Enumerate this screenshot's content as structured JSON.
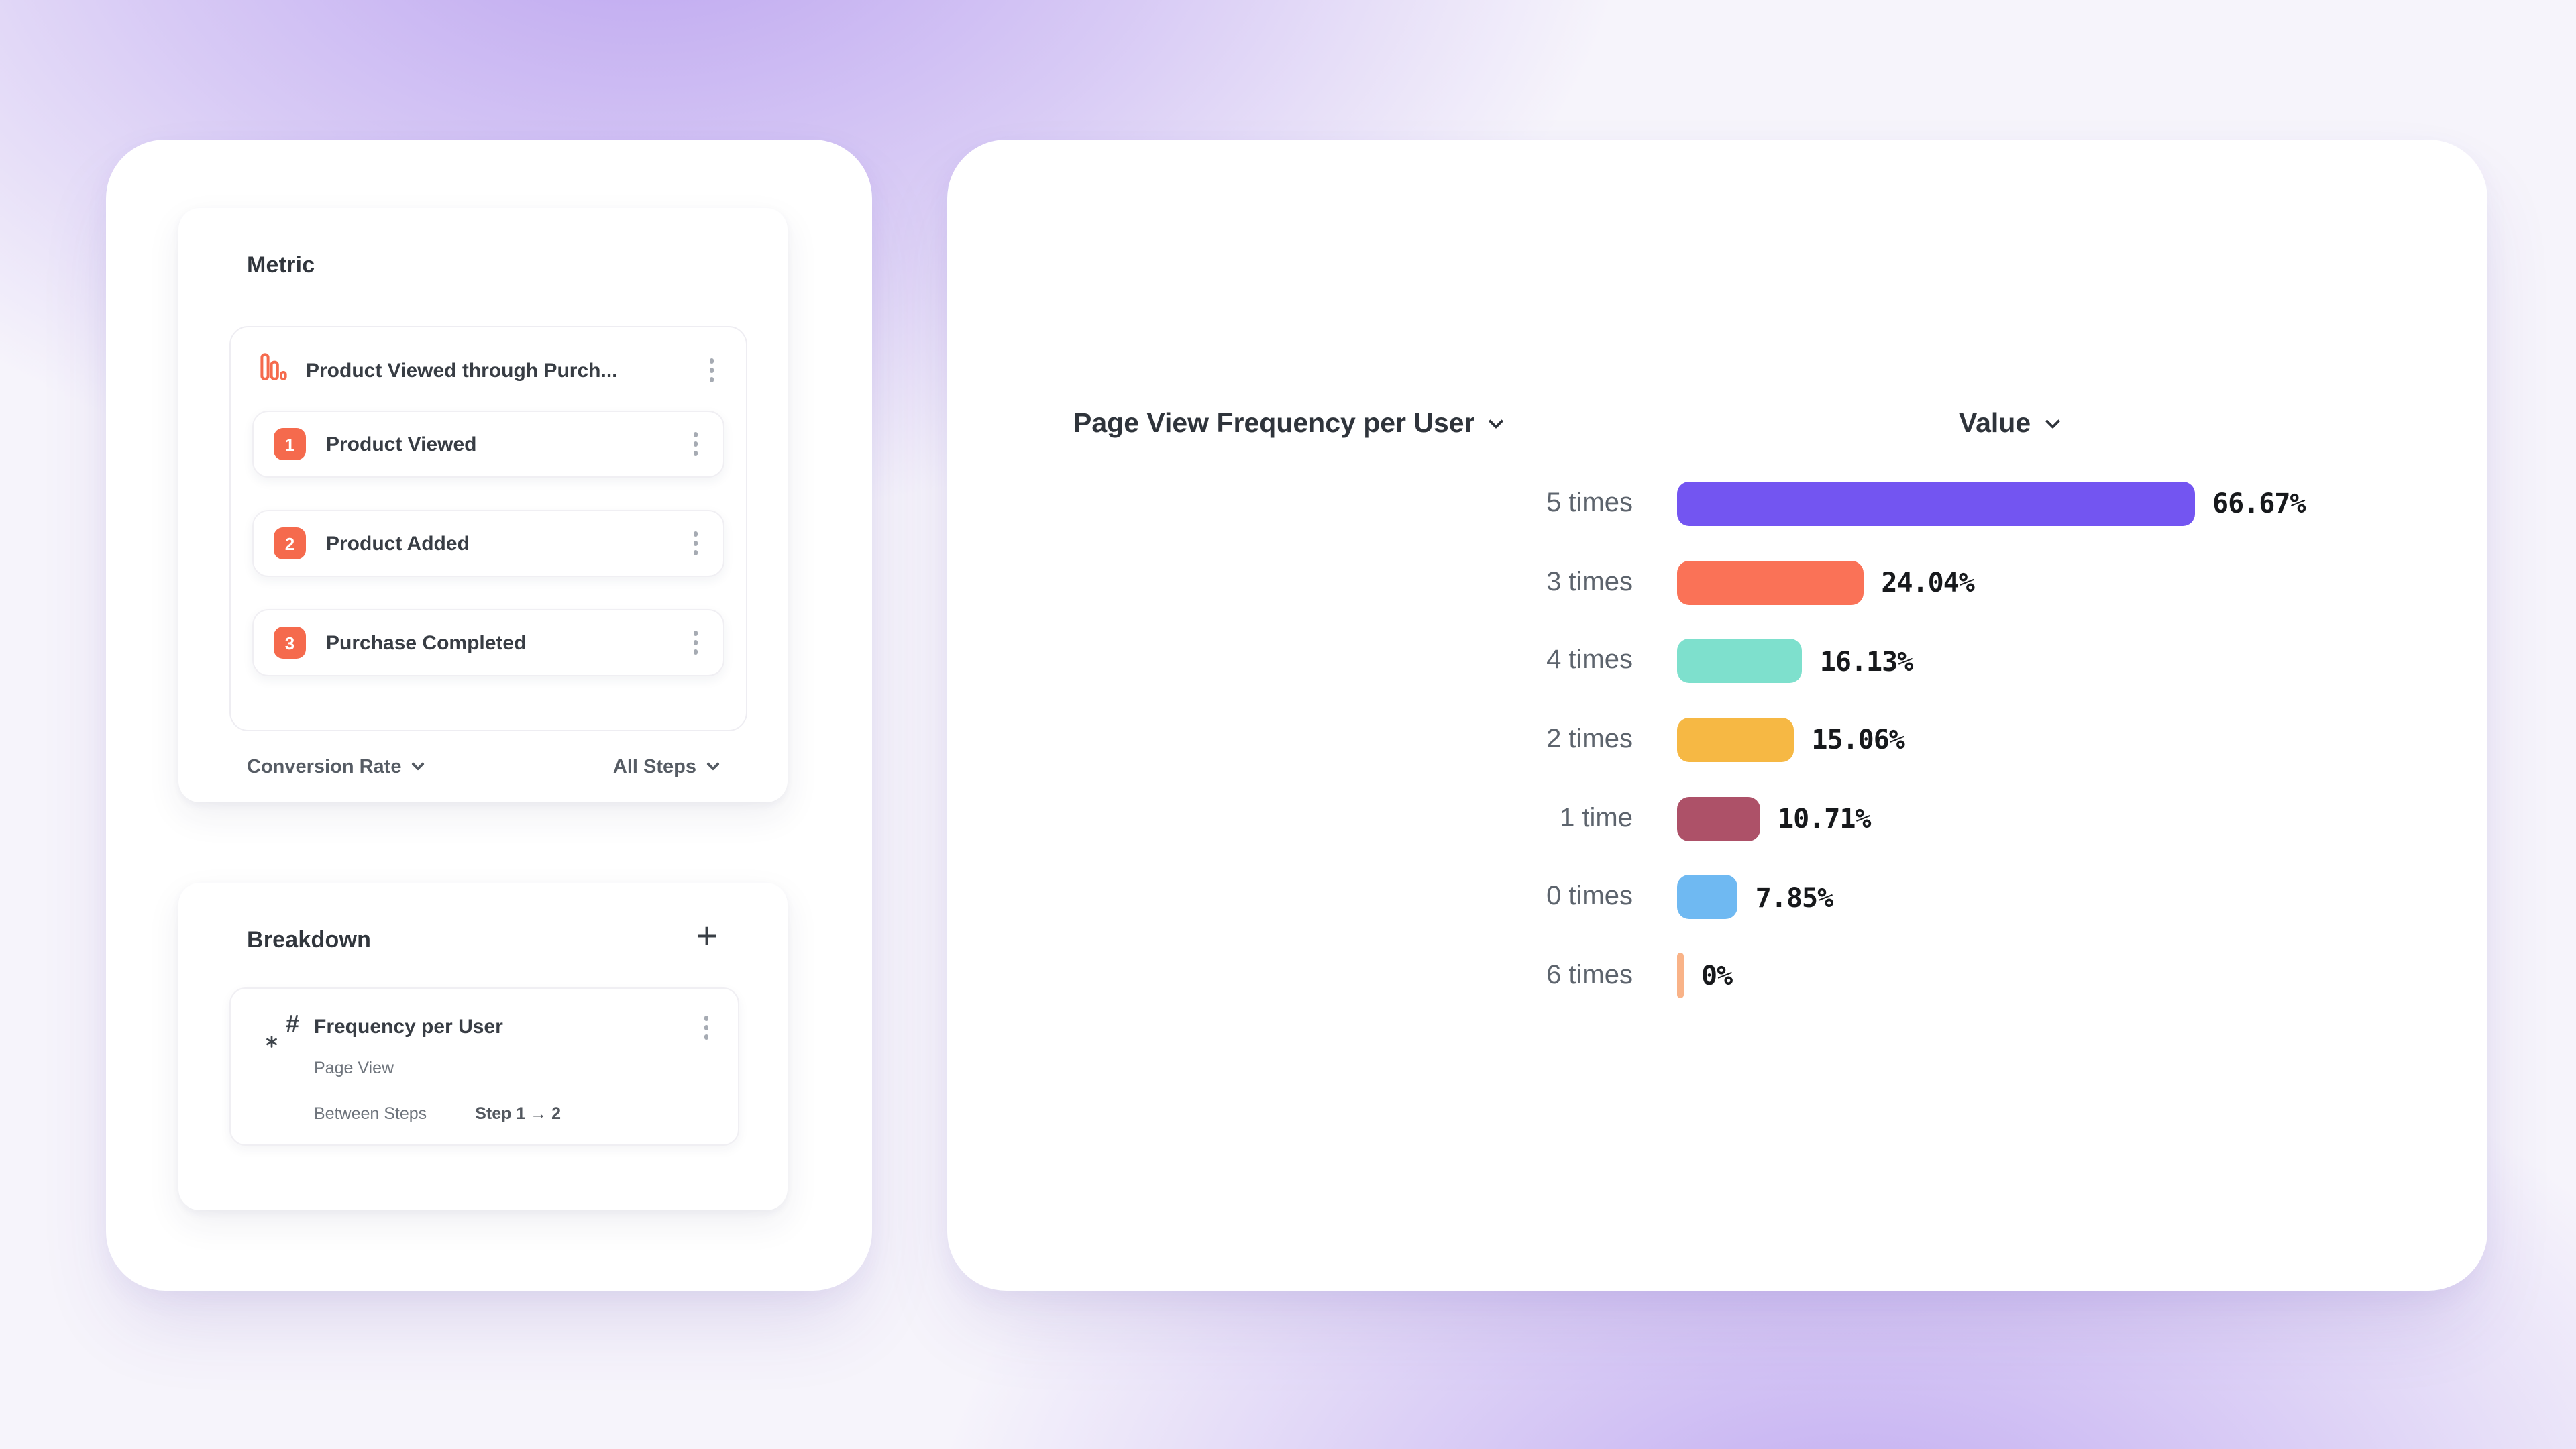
{
  "theme": {
    "background_base": "#F6F4FB",
    "background_glow": "#8A5FE6",
    "card_background": "#FFFFFF",
    "accent_orange": "#F56A4D",
    "text_dark": "#31363D",
    "text_gray": "#5D646D"
  },
  "metric_panel": {
    "title": "Metric",
    "funnel": {
      "icon": "funnel-bars-icon",
      "title": "Product Viewed through Purch...",
      "steps": [
        {
          "number": "1",
          "label": "Product Viewed"
        },
        {
          "number": "2",
          "label": "Product Added"
        },
        {
          "number": "3",
          "label": "Purchase Completed"
        }
      ]
    },
    "footer": {
      "conversion_dropdown": "Conversion Rate",
      "steps_dropdown": "All Steps"
    }
  },
  "breakdown_panel": {
    "title": "Breakdown",
    "add_glyph": "+",
    "item": {
      "icon": "hash-number-icon",
      "title": "Frequency per User",
      "event": "Page View",
      "scope_label": "Between Steps",
      "scope_value": "Step 1 → 2"
    }
  },
  "chart_panel": {
    "metric_dropdown": "Page View Frequency per User",
    "value_dropdown": "Value"
  },
  "chart_data": {
    "type": "bar",
    "orientation": "horizontal",
    "title": "Page View Frequency per User",
    "sort": "Value descending",
    "categories": [
      "5 times",
      "3 times",
      "4 times",
      "2 times",
      "1 time",
      "0 times",
      "6 times"
    ],
    "values": [
      66.67,
      24.04,
      16.13,
      15.06,
      10.71,
      7.85,
      0
    ],
    "value_labels": [
      "66.67%",
      "24.04%",
      "16.13%",
      "15.06%",
      "10.71%",
      "7.85%",
      "0%"
    ],
    "bar_colors": [
      "#7355F1",
      "#FA7257",
      "#7EE0CD",
      "#F6B844",
      "#AD5168",
      "#6FB9F2",
      "#F9B388"
    ],
    "axis_max": 66.67,
    "xlabel": "",
    "ylabel": "",
    "grid": false,
    "legend": false
  }
}
